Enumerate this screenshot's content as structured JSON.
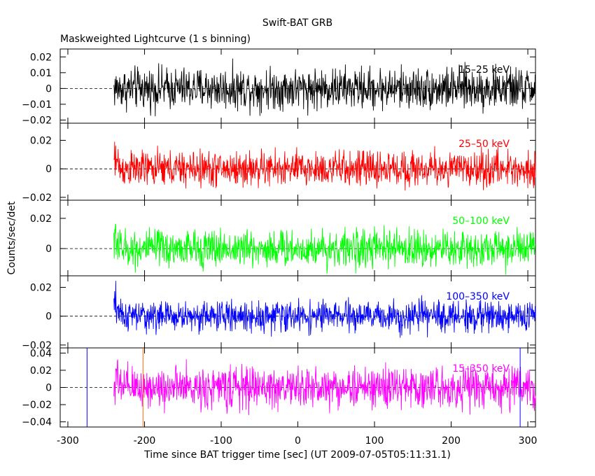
{
  "chart_data": {
    "type": "line",
    "title": "Swift-BAT GRB",
    "subtitle": "Maskweighted Lightcurve (1 s binning)",
    "xlabel": "Time since BAT trigger time [sec] (UT 2009-07-05T05:11:31.1)",
    "ylabel": "Counts/sec/det",
    "xlim": [
      -310,
      310
    ],
    "x_ticks": [
      "-300",
      "-200",
      "-100",
      "0",
      "100",
      "200",
      "300"
    ],
    "x_tick_values": [
      -300,
      -200,
      -100,
      0,
      100,
      200,
      300
    ],
    "data_start": -240,
    "data_end": 310,
    "vertical_markers": [
      {
        "x": -275,
        "color": "#0000ff"
      },
      {
        "x": -202,
        "color": "#ff6600"
      },
      {
        "x": 290,
        "color": "#0000ff"
      }
    ],
    "panels": [
      {
        "name": "15-25 keV",
        "label": "15–25 keV",
        "color": "#000000",
        "ylim": [
          -0.022,
          0.025
        ],
        "ticks": [
          "0.02",
          "0.01",
          "0",
          "−0.01",
          "−0.02"
        ],
        "tick_values": [
          0.02,
          0.01,
          0,
          -0.01,
          -0.02
        ],
        "noise_sigma": 0.0065,
        "spike_start": 0.0
      },
      {
        "name": "25-50 keV",
        "label": "25–50 keV",
        "color": "#ff0000",
        "ylim": [
          -0.022,
          0.032
        ],
        "ticks": [
          "0.02",
          "0",
          "−0.02"
        ],
        "tick_values": [
          0.02,
          0,
          -0.02
        ],
        "noise_sigma": 0.0062,
        "spike_start": 0.026
      },
      {
        "name": "50-100 keV",
        "label": "50–100 keV",
        "color": "#00ff00",
        "ylim": [
          -0.018,
          0.032
        ],
        "ticks": [
          "0.02",
          "0"
        ],
        "tick_values": [
          0.02,
          0
        ],
        "noise_sigma": 0.0062,
        "spike_start": 0.025
      },
      {
        "name": "100-350 keV",
        "label": "100–350 keV",
        "color": "#0000ff",
        "ylim": [
          -0.022,
          0.028
        ],
        "ticks": [
          "0.02",
          "0",
          "−0.02"
        ],
        "tick_values": [
          0.02,
          0,
          -0.02
        ],
        "noise_sigma": 0.0052,
        "spike_start": 0.022
      },
      {
        "name": "15-350 keV",
        "label": "15–350 keV",
        "color": "#ff00ff",
        "ylim": [
          -0.046,
          0.046
        ],
        "ticks": [
          "0.04",
          "0.02",
          "0",
          "−0.02",
          "−0.04"
        ],
        "tick_values": [
          0.04,
          0.02,
          0,
          -0.02,
          -0.04
        ],
        "noise_sigma": 0.012,
        "spike_start": 0.035
      }
    ]
  }
}
